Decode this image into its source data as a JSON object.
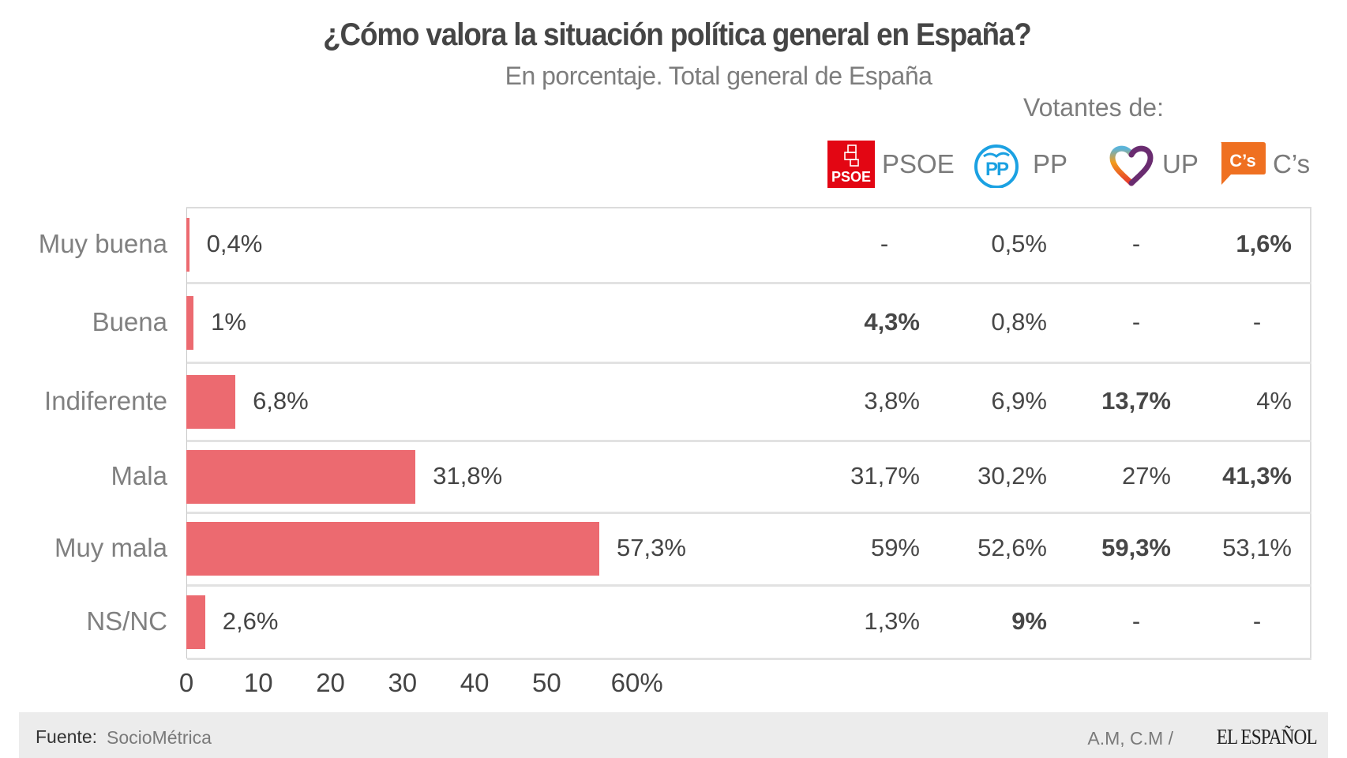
{
  "chart_data": {
    "type": "bar",
    "orientation": "horizontal",
    "title": "¿Cómo valora la situación política general en España?",
    "subtitle": "En porcentaje. Total general de España",
    "categories": [
      "Muy buena",
      "Buena",
      "Indiferente",
      "Mala",
      "Muy mala",
      "NS/NC"
    ],
    "values": [
      0.4,
      1,
      6.8,
      31.8,
      57.3,
      2.6
    ],
    "value_labels": [
      "0,4%",
      "1%",
      "6,8%",
      "31,8%",
      "57,3%",
      "2,6%"
    ],
    "xlabel": "",
    "ylabel": "",
    "xlim": [
      0,
      60
    ],
    "x_ticks": [
      "0",
      "10",
      "20",
      "30",
      "40",
      "50",
      "60%"
    ],
    "bar_color": "#ec6a70",
    "table": {
      "heading": "Votantes de:",
      "columns": [
        "PSOE",
        "PP",
        "UP",
        "C’s"
      ],
      "rows": [
        {
          "category": "Muy buena",
          "cells": [
            {
              "v": "-"
            },
            {
              "v": "0,5%"
            },
            {
              "v": "-"
            },
            {
              "v": "1,6%",
              "bold": true
            }
          ]
        },
        {
          "category": "Buena",
          "cells": [
            {
              "v": "4,3%",
              "bold": true
            },
            {
              "v": "0,8%"
            },
            {
              "v": "-"
            },
            {
              "v": "-"
            }
          ]
        },
        {
          "category": "Indiferente",
          "cells": [
            {
              "v": "3,8%"
            },
            {
              "v": "6,9%"
            },
            {
              "v": "13,7%",
              "bold": true
            },
            {
              "v": "4%"
            }
          ]
        },
        {
          "category": "Mala",
          "cells": [
            {
              "v": "31,7%"
            },
            {
              "v": "30,2%"
            },
            {
              "v": "27%"
            },
            {
              "v": "41,3%",
              "bold": true
            }
          ]
        },
        {
          "category": "Muy mala",
          "cells": [
            {
              "v": "59%"
            },
            {
              "v": "52,6%"
            },
            {
              "v": "59,3%",
              "bold": true
            },
            {
              "v": "53,1%"
            }
          ]
        },
        {
          "category": "NS/NC",
          "cells": [
            {
              "v": "1,3%"
            },
            {
              "v": "9%",
              "bold": true
            },
            {
              "v": "-"
            },
            {
              "v": "-"
            }
          ]
        }
      ]
    }
  },
  "header": {
    "title": "¿Cómo valora la situación política general en España?",
    "subtitle": "En porcentaje. Total general de España",
    "voters_heading": "Votantes de:"
  },
  "parties": [
    {
      "name": "PSOE",
      "icon": "psoe-logo-icon",
      "logo_text": "PSOE",
      "color": "#e30613"
    },
    {
      "name": "PP",
      "icon": "pp-logo-icon",
      "logo_text": "PP",
      "color": "#1ba1e2"
    },
    {
      "name": "UP",
      "icon": "up-heart-logo-icon",
      "logo_text": "",
      "color": "#6a2c70"
    },
    {
      "name": "C’s",
      "icon": "cs-logo-icon",
      "logo_text": "C’s",
      "color": "#ef7021"
    }
  ],
  "footer": {
    "source_label": "Fuente:",
    "source_value": "SocioMétrica",
    "credits": "A.M, C.M /",
    "brand": "EL ESPAÑOL"
  }
}
